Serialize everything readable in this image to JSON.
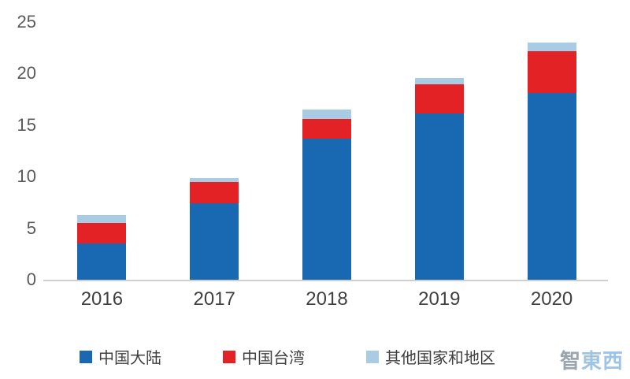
{
  "chart_data": {
    "type": "bar",
    "stacked": true,
    "title": "",
    "categories": [
      "2016",
      "2017",
      "2018",
      "2019",
      "2020"
    ],
    "series": [
      {
        "name": "中国大陆",
        "color": "#1868b2",
        "values": [
          3.5,
          7.4,
          13.7,
          16.1,
          18.1
        ]
      },
      {
        "name": "中国台湾",
        "color": "#e32226",
        "values": [
          2.0,
          2.1,
          1.9,
          2.9,
          4.1
        ]
      },
      {
        "name": "其他国家和地区",
        "color": "#a9cce5",
        "values": [
          0.8,
          0.4,
          0.9,
          0.6,
          0.8
        ]
      }
    ],
    "ylim": [
      0,
      25
    ],
    "yticks": [
      0,
      5,
      10,
      15,
      20,
      25
    ],
    "xlabel": "",
    "ylabel": "",
    "grid": false,
    "legend_position": "bottom"
  },
  "colors": {
    "axis_line": "#d0cece",
    "tick_label": "#595959",
    "x_label": "#404040"
  },
  "watermark": {
    "part_gray": "智",
    "part_blue": "東西"
  }
}
